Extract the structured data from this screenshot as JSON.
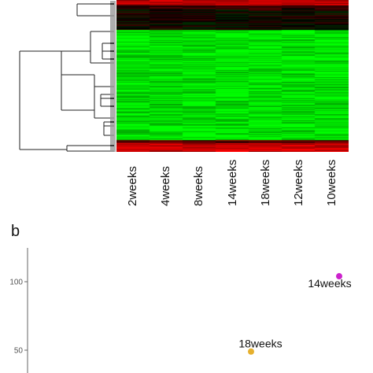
{
  "panel_b": {
    "label": "b"
  },
  "chart_data": [
    {
      "type": "heatmap",
      "columns": [
        "2weeks",
        "4weeks",
        "8weeks",
        "14weeks",
        "18weeks",
        "12weeks",
        "10weeks"
      ],
      "colors": {
        "low": "#00ff00",
        "mid": "#000000",
        "high": "#ff0000"
      },
      "row_dendrogram": true
    },
    {
      "type": "scatter",
      "points": [
        {
          "label": "14weeks",
          "y": 104,
          "color": "#cc22cc"
        },
        {
          "label": "18weeks",
          "y": 49,
          "color": "#e6b02e"
        }
      ],
      "yticks": [
        50,
        100
      ],
      "ytick_labels": [
        "50",
        "100"
      ]
    }
  ]
}
